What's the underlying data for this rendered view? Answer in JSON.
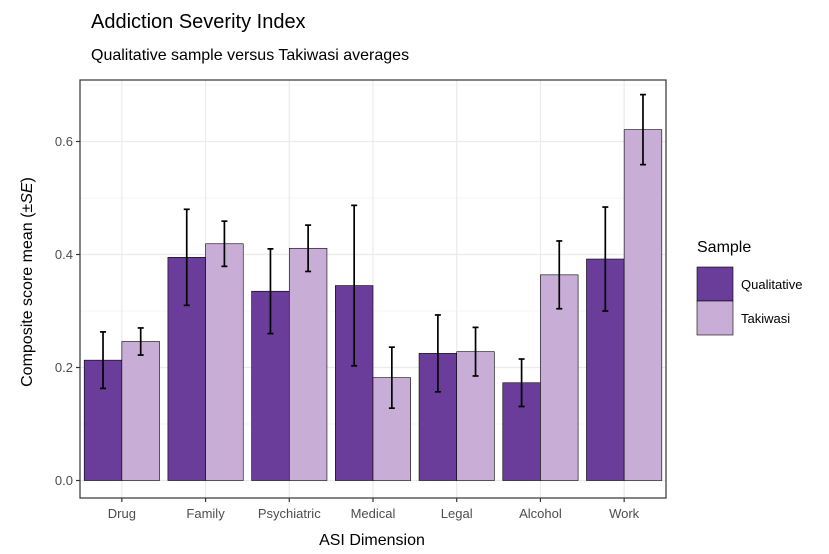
{
  "chart_data": {
    "type": "bar",
    "title": "Addiction Severity Index",
    "subtitle": "Qualitative sample versus Takiwasi averages",
    "xlabel": "ASI Dimension",
    "ylabel_prefix": "Composite score mean (±",
    "ylabel_italic": "SE",
    "ylabel_suffix": ")",
    "ylim": [
      0,
      0.7
    ],
    "yticks": [
      0.0,
      0.2,
      0.4,
      0.6
    ],
    "ytick_labels": [
      "0.0",
      "0.2",
      "0.4",
      "0.6"
    ],
    "categories": [
      "Drug",
      "Family",
      "Psychiatric",
      "Medical",
      "Legal",
      "Alcohol",
      "Work"
    ],
    "series": [
      {
        "name": "Qualitative",
        "color": "#6a3d9a",
        "values": [
          0.213,
          0.395,
          0.335,
          0.345,
          0.225,
          0.173,
          0.392
        ],
        "errors": [
          0.05,
          0.085,
          0.075,
          0.142,
          0.068,
          0.042,
          0.092
        ]
      },
      {
        "name": "Takiwasi",
        "color": "#c8add6",
        "values": [
          0.246,
          0.419,
          0.411,
          0.182,
          0.228,
          0.364,
          0.621
        ],
        "errors": [
          0.024,
          0.04,
          0.041,
          0.054,
          0.043,
          0.06,
          0.062
        ]
      }
    ],
    "legend": {
      "title": "Sample",
      "position": "right"
    },
    "grid": true,
    "theme": "bw"
  }
}
